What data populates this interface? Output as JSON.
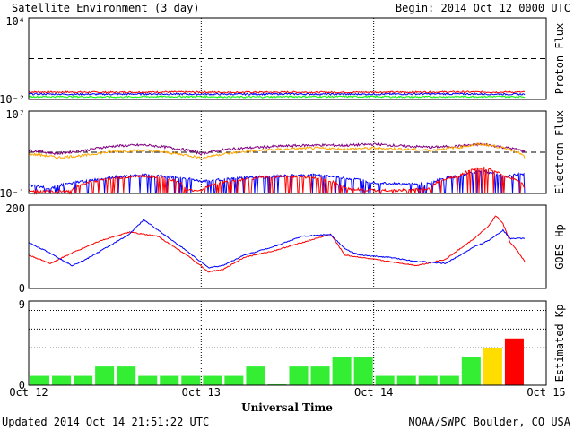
{
  "header": {
    "title": "Satellite Environment (3 day)",
    "begin": "Begin:  2014 Oct 12 0000 UTC"
  },
  "footer": {
    "updated": "Updated 2014 Oct 14 21:51:22 UTC",
    "source": "NOAA/SWPC Boulder, CO USA"
  },
  "colors": {
    "red": "#ff0000",
    "blue": "#0000ff",
    "green": "#00ff00",
    "purple": "#800080",
    "orange": "#ffa500",
    "kp_green": "#33ee33",
    "kp_yellow": "#ffdd00",
    "kp_red": "#ff0000"
  },
  "chart_data": [
    {
      "type": "line",
      "panel": "proton",
      "ylabel": "Proton Flux",
      "yscale": "log",
      "ylim": [
        0.01,
        10000
      ],
      "yticks": [
        "10⁴",
        "10⁻²"
      ],
      "threshold": 10,
      "x_range_hours": [
        0,
        72
      ],
      "series": [
        {
          "color": "red",
          "x": [
            0,
            6,
            12,
            18,
            24,
            30,
            36,
            42,
            48,
            54,
            60,
            66,
            69
          ],
          "y": [
            0.035,
            0.034,
            0.033,
            0.035,
            0.034,
            0.033,
            0.034,
            0.033,
            0.034,
            0.034,
            0.035,
            0.034,
            0.034
          ]
        },
        {
          "color": "blue",
          "x": [
            0,
            6,
            12,
            18,
            24,
            30,
            36,
            42,
            48,
            54,
            60,
            66,
            69
          ],
          "y": [
            0.025,
            0.024,
            0.024,
            0.025,
            0.024,
            0.024,
            0.025,
            0.024,
            0.024,
            0.025,
            0.025,
            0.024,
            0.024
          ]
        },
        {
          "color": "green",
          "x": [
            0,
            6,
            12,
            18,
            24,
            30,
            36,
            42,
            48,
            54,
            60,
            66,
            69
          ],
          "y": [
            0.016,
            0.016,
            0.015,
            0.016,
            0.016,
            0.015,
            0.016,
            0.016,
            0.016,
            0.015,
            0.016,
            0.016,
            0.016
          ]
        }
      ]
    },
    {
      "type": "line",
      "panel": "electron",
      "ylabel": "Electron Flux",
      "yscale": "log",
      "ylim": [
        0.1,
        10000000
      ],
      "yticks": [
        "10⁷",
        "10⁻¹"
      ],
      "threshold": 1000,
      "x_range_hours": [
        0,
        72
      ],
      "series": [
        {
          "color": "purple",
          "x": [
            0,
            4,
            8,
            12,
            16,
            20,
            24,
            28,
            32,
            36,
            40,
            44,
            48,
            52,
            56,
            60,
            63,
            66,
            69
          ],
          "y": [
            1500,
            700,
            1500,
            4000,
            5000,
            2500,
            700,
            2000,
            3000,
            4000,
            5000,
            4500,
            6000,
            4000,
            3000,
            4000,
            6000,
            3000,
            1200
          ]
        },
        {
          "color": "orange",
          "x": [
            0,
            4,
            8,
            12,
            16,
            20,
            24,
            28,
            32,
            36,
            40,
            44,
            48,
            52,
            56,
            60,
            63,
            66,
            69
          ],
          "y": [
            700,
            300,
            500,
            1200,
            1500,
            800,
            250,
            800,
            1500,
            2000,
            2500,
            2000,
            2500,
            2000,
            1500,
            3000,
            6000,
            2500,
            300
          ]
        },
        {
          "color": "blue",
          "x": [
            0,
            3,
            6,
            9,
            12,
            16,
            20,
            24,
            28,
            32,
            36,
            40,
            44,
            48,
            52,
            56,
            60,
            63,
            66,
            69
          ],
          "y": [
            0.6,
            0.3,
            1.0,
            2.0,
            4.0,
            6.0,
            4.0,
            1.5,
            2.5,
            4.0,
            5.0,
            6.0,
            3.0,
            1.2,
            0.8,
            1.0,
            5.0,
            15.0,
            4.0,
            8.0
          ]
        },
        {
          "color": "red",
          "x": [
            0,
            3,
            6,
            9,
            12,
            16,
            20,
            22,
            24,
            28,
            32,
            36,
            40,
            44,
            48,
            52,
            56,
            60,
            63,
            66,
            69
          ],
          "y": [
            0.2,
            0.15,
            0.2,
            1.5,
            3.0,
            5.0,
            2.0,
            0.2,
            0.2,
            1.5,
            3.0,
            5.0,
            3.0,
            0.3,
            0.2,
            0.2,
            0.3,
            5.0,
            30.0,
            5.0,
            0.3
          ]
        }
      ]
    },
    {
      "type": "line",
      "panel": "goes_hp",
      "ylabel": "GOES Hp",
      "ylim": [
        0,
        200
      ],
      "yticks": [
        "200",
        "0"
      ],
      "x_range_hours": [
        0,
        72
      ],
      "series": [
        {
          "color": "red",
          "x": [
            0,
            3,
            6,
            10,
            14,
            18,
            22,
            25,
            27,
            30,
            34,
            38,
            42,
            44,
            46,
            50,
            54,
            58,
            62,
            64,
            65,
            66,
            67,
            68,
            69
          ],
          "y": [
            80,
            60,
            85,
            115,
            135,
            125,
            80,
            40,
            45,
            75,
            90,
            110,
            130,
            80,
            75,
            65,
            55,
            70,
            120,
            150,
            175,
            155,
            110,
            90,
            65
          ]
        },
        {
          "color": "blue",
          "x": [
            0,
            3,
            6,
            8,
            10,
            14,
            16,
            18,
            22,
            25,
            27,
            30,
            34,
            38,
            42,
            44,
            46,
            50,
            54,
            58,
            60,
            62,
            64,
            66,
            67,
            68,
            69
          ],
          "y": [
            110,
            85,
            55,
            70,
            90,
            130,
            165,
            140,
            90,
            50,
            55,
            80,
            100,
            125,
            130,
            95,
            80,
            75,
            65,
            60,
            80,
            100,
            115,
            140,
            120,
            120,
            120
          ]
        }
      ]
    },
    {
      "type": "bar",
      "panel": "kp",
      "ylabel": "Estimated Kp",
      "ylim": [
        0,
        9
      ],
      "yticks": [
        "9",
        "0"
      ],
      "x_start_hours": [
        0,
        3,
        6,
        9,
        12,
        15,
        18,
        21,
        24,
        27,
        30,
        33,
        36,
        39,
        42,
        45,
        48,
        51,
        54,
        57,
        60,
        63,
        66
      ],
      "values": [
        1,
        1,
        1,
        2,
        2,
        1,
        1,
        1,
        1,
        1,
        2,
        0.1,
        2,
        2,
        3,
        3,
        1,
        1,
        1,
        1,
        3,
        4,
        5
      ],
      "bar_colors": [
        "kp_green",
        "kp_green",
        "kp_green",
        "kp_green",
        "kp_green",
        "kp_green",
        "kp_green",
        "kp_green",
        "kp_green",
        "kp_green",
        "kp_green",
        "kp_green",
        "kp_green",
        "kp_green",
        "kp_green",
        "kp_green",
        "kp_green",
        "kp_green",
        "kp_green",
        "kp_green",
        "kp_green",
        "kp_yellow",
        "kp_red"
      ],
      "dotted_levels": [
        4,
        6,
        8
      ]
    }
  ],
  "xaxis": {
    "ticks": [
      "Oct 12",
      "Oct 13",
      "Oct 14",
      "Oct 15"
    ],
    "label": "Universal Time"
  }
}
